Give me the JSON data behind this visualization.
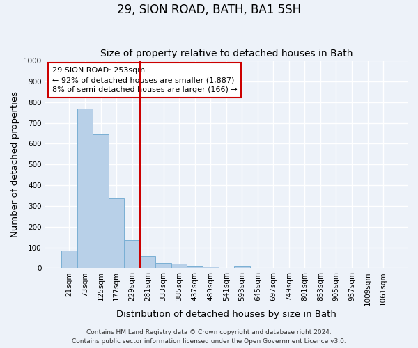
{
  "title": "29, SION ROAD, BATH, BA1 5SH",
  "subtitle": "Size of property relative to detached houses in Bath",
  "xlabel": "Distribution of detached houses by size in Bath",
  "ylabel": "Number of detached properties",
  "categories": [
    "21sqm",
    "73sqm",
    "125sqm",
    "177sqm",
    "229sqm",
    "281sqm",
    "333sqm",
    "385sqm",
    "437sqm",
    "489sqm",
    "541sqm",
    "593sqm",
    "645sqm",
    "697sqm",
    "749sqm",
    "801sqm",
    "853sqm",
    "905sqm",
    "957sqm",
    "1009sqm",
    "1061sqm"
  ],
  "values": [
    85,
    770,
    645,
    335,
    135,
    60,
    25,
    20,
    10,
    8,
    0,
    10,
    0,
    0,
    0,
    0,
    0,
    0,
    0,
    0,
    0
  ],
  "bar_color": "#b8d0e8",
  "bar_edge_color": "#7aafd4",
  "ylim": [
    0,
    1000
  ],
  "yticks": [
    0,
    100,
    200,
    300,
    400,
    500,
    600,
    700,
    800,
    900,
    1000
  ],
  "vline_x": 4.5,
  "vline_color": "#cc0000",
  "annotation_text": "29 SION ROAD: 253sqm\n← 92% of detached houses are smaller (1,887)\n8% of semi-detached houses are larger (166) →",
  "annotation_box_color": "#ffffff",
  "annotation_box_edge": "#cc0000",
  "footer_line1": "Contains HM Land Registry data © Crown copyright and database right 2024.",
  "footer_line2": "Contains public sector information licensed under the Open Government Licence v3.0.",
  "background_color": "#edf2f9",
  "grid_color": "#ffffff",
  "title_fontsize": 12,
  "subtitle_fontsize": 10,
  "label_fontsize": 9.5,
  "tick_fontsize": 7.5,
  "footer_fontsize": 6.5,
  "annotation_fontsize": 8
}
